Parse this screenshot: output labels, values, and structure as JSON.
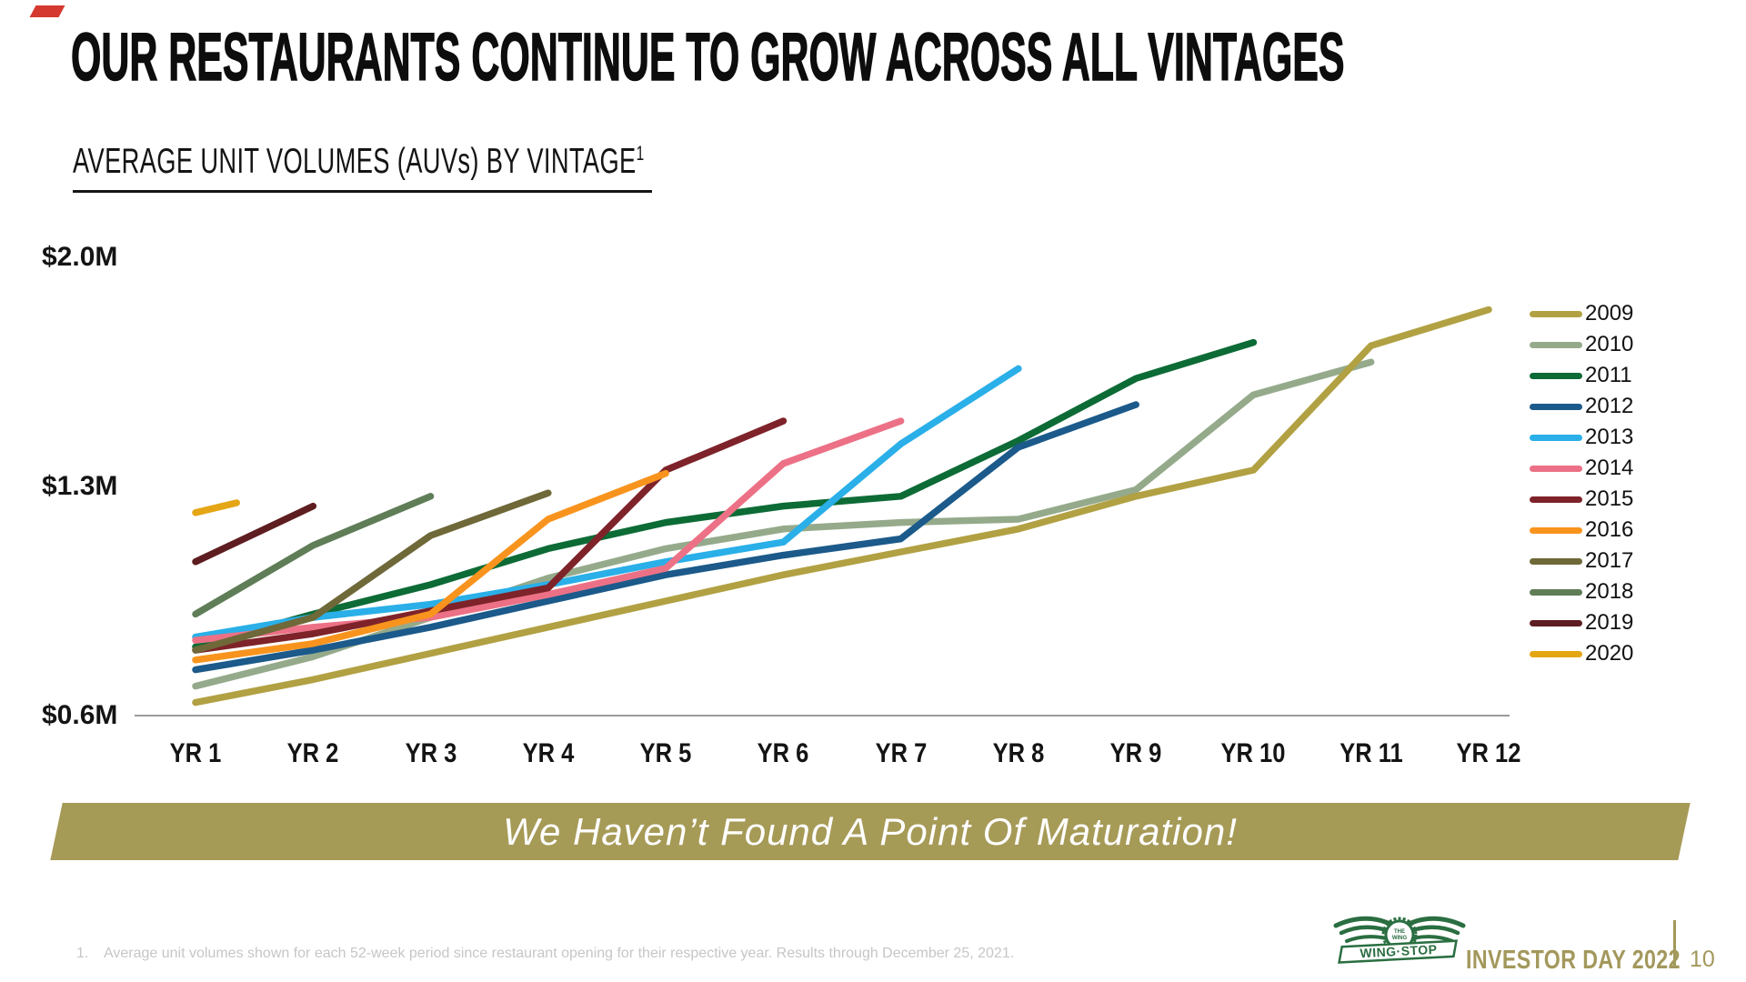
{
  "slide": {
    "title": "OUR RESTAURANTS CONTINUE TO GROW ACROSS ALL VINTAGES",
    "subtitle": "AVERAGE UNIT VOLUMES (AUVs) BY VINTAGE",
    "subtitle_superscript": "1",
    "banner": "We Haven’t Found A Point Of Maturation!",
    "footnote_number": "1.",
    "footnote": "Average unit volumes shown for each 52-week period since restaurant opening for their respective year. Results through December 25, 2021.",
    "footer_brand": "INVESTOR DAY 2022",
    "page_number": "10",
    "logo_text": "WING·STOP",
    "colors": {
      "banner": "#a69a57",
      "accent_red": "#d5382f",
      "footer_text": "#a3985c",
      "logo_green": "#2a6e41",
      "axis": "#9b9b9b"
    }
  },
  "chart_data": {
    "type": "line",
    "title": "AVERAGE UNIT VOLUMES (AUVs) BY VINTAGE",
    "xlabel": "",
    "ylabel": "",
    "unit": "$M",
    "grid": false,
    "legend_position": "right",
    "ylim": [
      0.6,
      2.0
    ],
    "y_ticks": [
      {
        "label": "$2.0M",
        "value": 2.0
      },
      {
        "label": "$1.3M",
        "value": 1.3
      },
      {
        "label": "$0.6M",
        "value": 0.6
      }
    ],
    "x_categories": [
      "YR 1",
      "YR 2",
      "YR 3",
      "YR 4",
      "YR 5",
      "YR 6",
      "YR 7",
      "YR 8",
      "YR 9",
      "YR 10",
      "YR 11",
      "YR 12"
    ],
    "series": [
      {
        "name": "2009",
        "color": "#b1a143",
        "values": [
          0.64,
          0.71,
          0.79,
          0.87,
          0.95,
          1.03,
          1.1,
          1.17,
          1.27,
          1.35,
          1.73,
          1.84
        ]
      },
      {
        "name": "2010",
        "color": "#95aa8b",
        "values": [
          0.69,
          0.78,
          0.9,
          1.02,
          1.11,
          1.17,
          1.19,
          1.2,
          1.29,
          1.58,
          1.68
        ]
      },
      {
        "name": "2011",
        "color": "#0d6b36",
        "values": [
          0.81,
          0.91,
          1.0,
          1.11,
          1.19,
          1.24,
          1.27,
          1.44,
          1.63,
          1.74
        ]
      },
      {
        "name": "2012",
        "color": "#1b5a8a",
        "values": [
          0.74,
          0.8,
          0.87,
          0.95,
          1.03,
          1.09,
          1.14,
          1.42,
          1.55
        ]
      },
      {
        "name": "2013",
        "color": "#2aafe8",
        "values": [
          0.84,
          0.9,
          0.94,
          1.0,
          1.07,
          1.13,
          1.43,
          1.66
        ]
      },
      {
        "name": "2014",
        "color": "#ec7186",
        "values": [
          0.83,
          0.87,
          0.9,
          0.97,
          1.05,
          1.37,
          1.5
        ]
      },
      {
        "name": "2015",
        "color": "#7e2329",
        "values": [
          0.8,
          0.85,
          0.92,
          0.99,
          1.35,
          1.5
        ]
      },
      {
        "name": "2016",
        "color": "#f8941e",
        "values": [
          0.77,
          0.82,
          0.91,
          1.2,
          1.34
        ]
      },
      {
        "name": "2017",
        "color": "#6f6838",
        "values": [
          0.8,
          0.9,
          1.15,
          1.28
        ]
      },
      {
        "name": "2018",
        "color": "#5f7d57",
        "values": [
          0.91,
          1.12,
          1.27
        ]
      },
      {
        "name": "2019",
        "color": "#5e1d20",
        "values": [
          1.07,
          1.24
        ]
      },
      {
        "name": "2020",
        "color": "#e5a616",
        "values": [
          1.22,
          1.25
        ],
        "x_end": 1.35
      }
    ]
  }
}
